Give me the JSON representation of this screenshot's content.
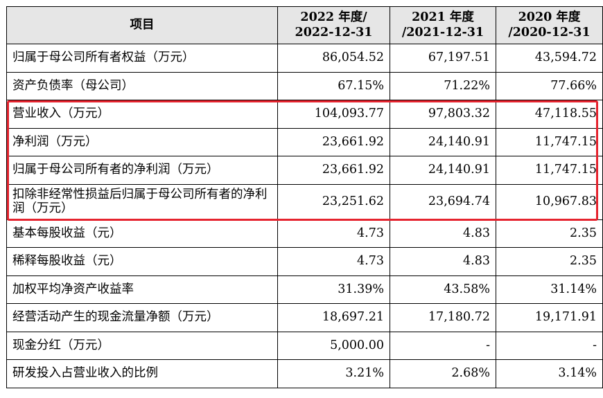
{
  "header": {
    "item": "项目",
    "years": [
      {
        "year": "2022 年度/",
        "date": "2022-12-31"
      },
      {
        "year": "2021 年度",
        "date": "/2021-12-31"
      },
      {
        "year": "2020 年度",
        "date": "/2020-12-31"
      }
    ]
  },
  "rows": [
    {
      "label": "归属于母公司所有者权益（万元）",
      "values": [
        "86,054.52",
        "67,197.51",
        "43,594.72"
      ]
    },
    {
      "label": "资产负债率（母公司）",
      "values": [
        "67.15%",
        "71.22%",
        "77.66%"
      ]
    },
    {
      "label": "营业收入（万元）",
      "values": [
        "104,093.77",
        "97,803.32",
        "47,118.55"
      ]
    },
    {
      "label": "净利润（万元）",
      "values": [
        "23,661.92",
        "24,140.91",
        "11,747.15"
      ]
    },
    {
      "label": "归属于母公司所有者的净利润（万元）",
      "values": [
        "23,661.92",
        "24,140.91",
        "11,747.15"
      ]
    },
    {
      "label": "扣除非经常性损益后归属于母公司所有者的净利润（万元）",
      "values": [
        "23,251.62",
        "23,694.74",
        "10,967.83"
      ]
    },
    {
      "label": "基本每股收益（元）",
      "values": [
        "4.73",
        "4.83",
        "2.35"
      ]
    },
    {
      "label": "稀释每股收益（元）",
      "values": [
        "4.73",
        "4.83",
        "2.35"
      ]
    },
    {
      "label": "加权平均净资产收益率",
      "values": [
        "31.39%",
        "43.58%",
        "31.14%"
      ]
    },
    {
      "label": "经营活动产生的现金流量净额（万元）",
      "values": [
        "18,697.21",
        "17,180.72",
        "19,171.91"
      ]
    },
    {
      "label": "现金分红（万元）",
      "values": [
        "5,000.00",
        "-",
        "-"
      ]
    },
    {
      "label": "研发投入占营业收入的比例",
      "values": [
        "3.21%",
        "2.68%",
        "3.14%"
      ]
    }
  ],
  "highlight_color": "#e5232e"
}
